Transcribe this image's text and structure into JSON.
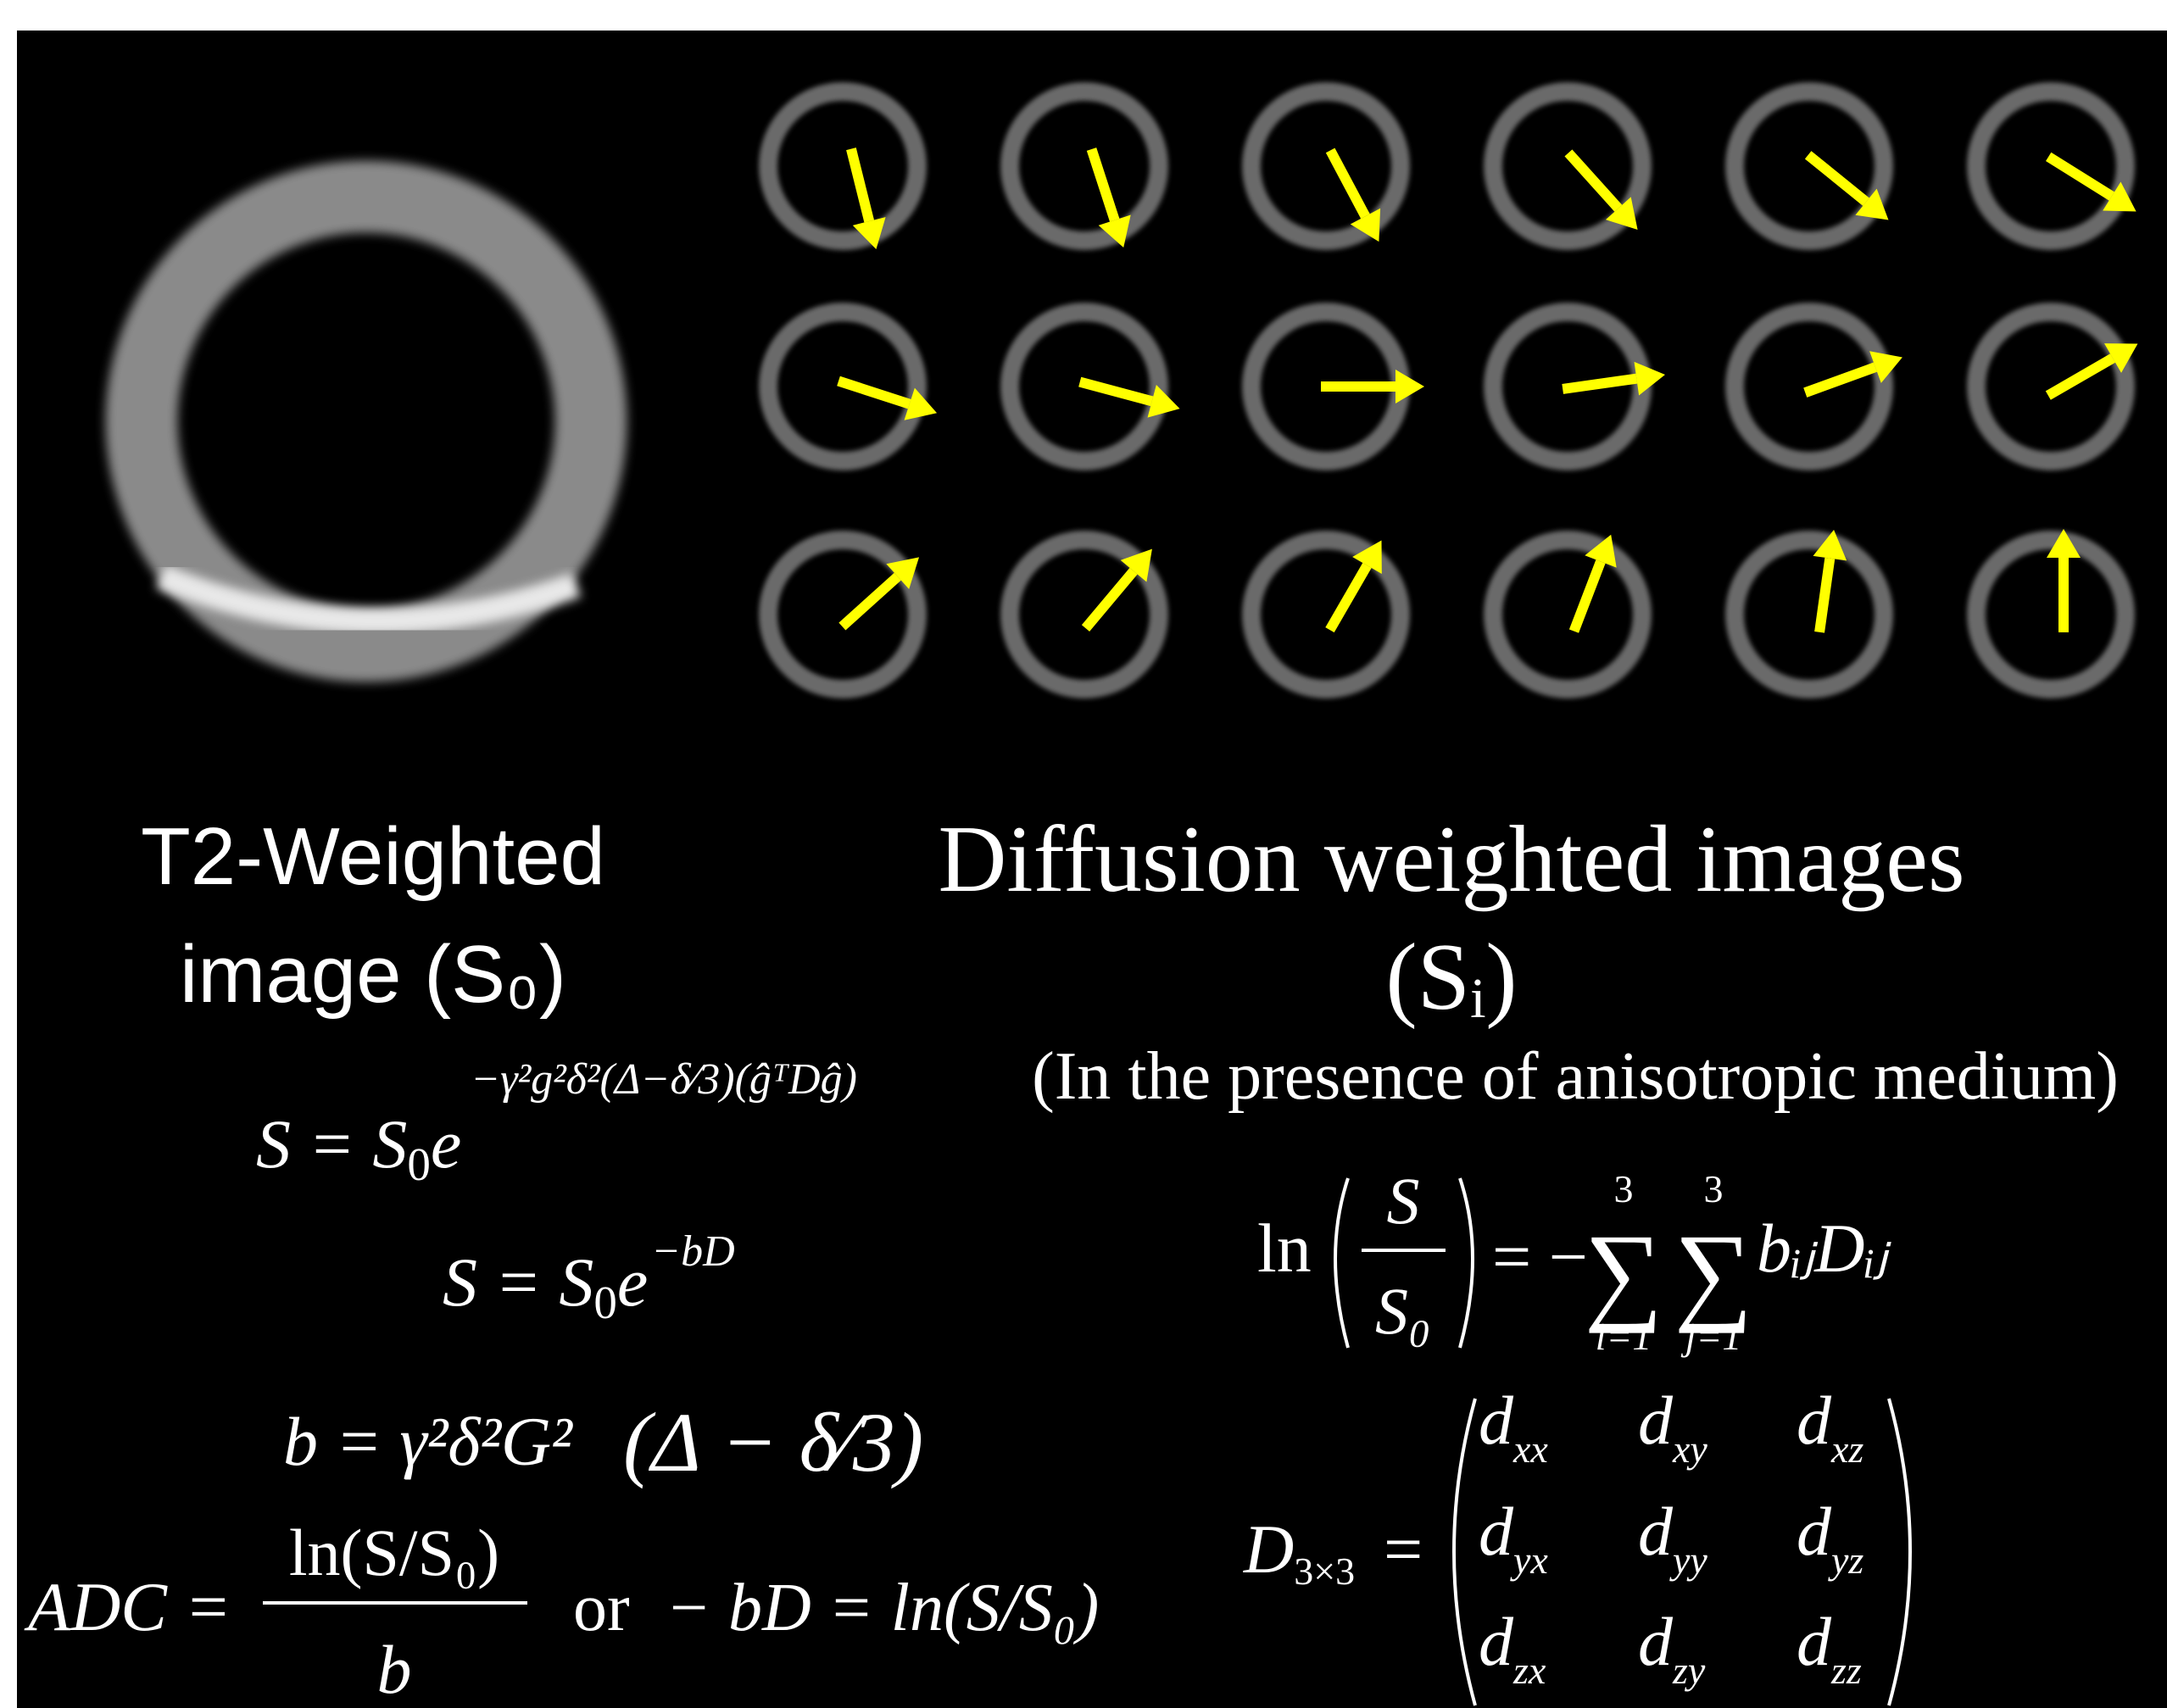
{
  "left_panel": {
    "label_line1": "T2-Weighted",
    "label_line2": "image (S₀)"
  },
  "right_panel": {
    "label_line1": "Diffusion weighted images",
    "label_line2": "(Sᵢ)",
    "note": "(In the presence of anisotropic medium)"
  },
  "equations": {
    "signal_full": {
      "lhs": "S = S",
      "sub": "0",
      "base": "e",
      "exponent": "−γ²g²δ²(Δ−δ⁄3)(ĝᵀDĝ)"
    },
    "signal": {
      "lhs": "S = S",
      "sub": "0",
      "base": "e",
      "exponent": "−bD"
    },
    "b_value": {
      "lhs": "b = γ²δ²G²",
      "paren": "(Δ − δ⁄3)"
    },
    "adc": {
      "lhs": "ADC =",
      "numerator": "ln(S/S₀)",
      "denominator": "b",
      "or": "or",
      "rhs": "− bD = ln(S/S₀)"
    },
    "log_sum": {
      "lhs": "ln",
      "numerator": "S",
      "denominator": "S₀",
      "sign": "= −",
      "sigma": "∑",
      "i_top": "3",
      "i_bottom": "i=1",
      "j_top": "3",
      "j_bottom": "j=1",
      "term": "bᵢⱼDᵢⱼ"
    },
    "tensor": {
      "lhs": "D",
      "lhs_sub": "3×3",
      "eq": "=",
      "symbol": "d",
      "matrix": [
        [
          "xx",
          "xy",
          "xz"
        ],
        [
          "yx",
          "yy",
          "yz"
        ],
        [
          "zx",
          "zy",
          "zz"
        ]
      ]
    }
  }
}
